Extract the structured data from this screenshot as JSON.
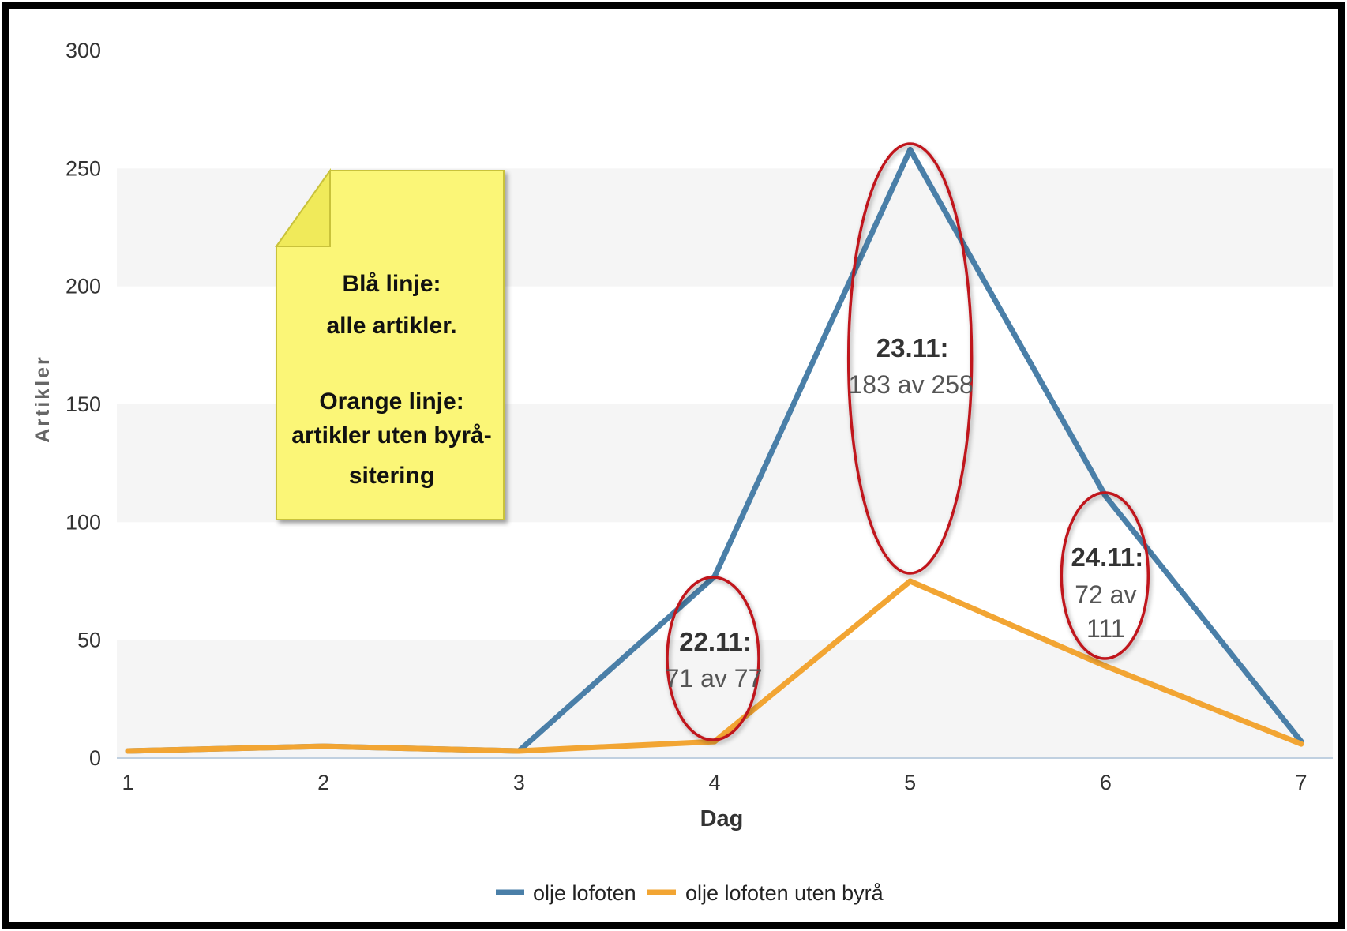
{
  "chart_data": {
    "type": "line",
    "title": "",
    "xlabel": "Dag",
    "ylabel": "Artikler",
    "x": [
      1,
      2,
      3,
      4,
      5,
      6,
      7
    ],
    "y_ticks": [
      0,
      50,
      100,
      150,
      200,
      250,
      300
    ],
    "ylim": [
      0,
      300
    ],
    "xlim": [
      1,
      7
    ],
    "grid": "alternating horizontal bands",
    "legend_position": "bottom-center",
    "series": [
      {
        "name": "olje lofoten",
        "color": "#4a7fa8",
        "values": [
          3,
          5,
          3,
          77,
          258,
          111,
          7
        ]
      },
      {
        "name": "olje lofoten uten byrå",
        "color": "#f2a533",
        "values": [
          3,
          5,
          3,
          7,
          75,
          39,
          6
        ]
      }
    ],
    "annotations": [
      {
        "x": 4,
        "date": "22.11:",
        "lines": [
          "71 av 77"
        ]
      },
      {
        "x": 5,
        "date": "23.11:",
        "lines": [
          "183 av 258"
        ]
      },
      {
        "x": 6,
        "date": "24.11:",
        "lines": [
          "72 av",
          "111"
        ]
      }
    ],
    "note": {
      "lines": [
        "Blå linje:",
        "alle artikler.",
        "",
        "Orange linje:",
        "artikler uten byrå-",
        "sitering"
      ]
    },
    "colors": {
      "circle": "#c0121b",
      "note_fill": "#fbf677",
      "note_stroke": "#c9c23b",
      "band": "#f5f5f5"
    }
  }
}
